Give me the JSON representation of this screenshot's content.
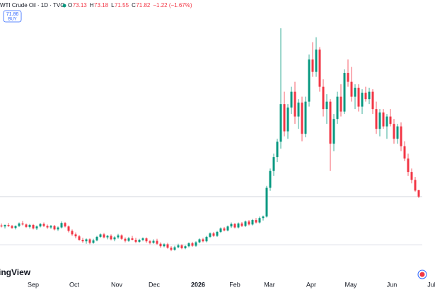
{
  "header": {
    "title": "WTI Crude Oil · 1D · TVC",
    "legend": [
      {
        "key": "O",
        "value": 73.13
      },
      {
        "key": "H",
        "value": 73.18
      },
      {
        "key": "L",
        "value": 71.55
      },
      {
        "key": "C",
        "value": 71.82
      }
    ],
    "change": "−1.22 (−1.67%)",
    "price_button": {
      "price": 71.86,
      "label": "BUY"
    }
  },
  "watermark": "ingView",
  "chart_data": {
    "type": "candlestick",
    "up_color": "#089981",
    "down_color": "#f23645",
    "xlim": [
      -0.4,
      122.6
    ],
    "ylim": [
      55.4,
      108.8
    ],
    "xticks": [
      {
        "value": 9,
        "label": "Sep"
      },
      {
        "value": 20.6,
        "label": "Oct"
      },
      {
        "value": 32.6,
        "label": "Nov"
      },
      {
        "value": 43.2,
        "label": "Dec"
      },
      {
        "value": 55.6,
        "label": "2026"
      },
      {
        "value": 66,
        "label": "Feb"
      },
      {
        "value": 75.8,
        "label": "Mar"
      },
      {
        "value": 87.6,
        "label": "Apr"
      },
      {
        "value": 98.8,
        "label": "May"
      },
      {
        "value": 110.4,
        "label": "Jun"
      },
      {
        "value": 121.6,
        "label": "Jul"
      }
    ],
    "ohlc": [
      [
        66.0,
        66.4,
        65.6,
        65.8
      ],
      [
        65.8,
        66.2,
        65.4,
        66.1
      ],
      [
        66.1,
        66.5,
        65.7,
        65.9
      ],
      [
        65.9,
        66.1,
        65.3,
        65.5
      ],
      [
        65.5,
        66.0,
        65.2,
        65.9
      ],
      [
        65.9,
        66.6,
        65.7,
        66.4
      ],
      [
        66.4,
        66.9,
        66.0,
        66.2
      ],
      [
        66.2,
        66.4,
        65.5,
        65.7
      ],
      [
        65.7,
        66.3,
        65.4,
        66.1
      ],
      [
        66.1,
        66.3,
        65.2,
        65.4
      ],
      [
        65.4,
        66.0,
        65.1,
        65.8
      ],
      [
        65.8,
        66.5,
        65.6,
        66.3
      ],
      [
        66.3,
        66.6,
        65.7,
        65.9
      ],
      [
        65.9,
        66.2,
        65.3,
        65.6
      ],
      [
        65.6,
        66.1,
        65.3,
        65.9
      ],
      [
        65.9,
        66.1,
        65.0,
        65.2
      ],
      [
        65.2,
        65.8,
        64.9,
        65.6
      ],
      [
        65.6,
        66.8,
        65.4,
        66.5
      ],
      [
        66.5,
        66.7,
        65.6,
        65.8
      ],
      [
        65.8,
        66.0,
        64.6,
        64.9
      ],
      [
        64.9,
        65.2,
        63.9,
        64.2
      ],
      [
        64.2,
        64.6,
        63.4,
        63.8
      ],
      [
        63.8,
        64.1,
        62.9,
        63.1
      ],
      [
        63.1,
        63.5,
        62.5,
        62.8
      ],
      [
        62.8,
        63.4,
        62.3,
        63.2
      ],
      [
        63.2,
        63.4,
        62.2,
        62.5
      ],
      [
        62.5,
        63.3,
        62.3,
        63.0
      ],
      [
        63.0,
        63.9,
        62.8,
        63.7
      ],
      [
        63.7,
        64.4,
        63.5,
        64.2
      ],
      [
        64.2,
        64.5,
        63.4,
        63.6
      ],
      [
        63.6,
        64.1,
        63.2,
        63.9
      ],
      [
        63.9,
        64.2,
        63.0,
        63.2
      ],
      [
        63.2,
        63.8,
        62.8,
        63.6
      ],
      [
        63.6,
        64.3,
        63.3,
        64.0
      ],
      [
        64.0,
        64.2,
        63.1,
        63.3
      ],
      [
        63.3,
        63.6,
        62.6,
        62.9
      ],
      [
        62.9,
        63.7,
        62.7,
        63.4
      ],
      [
        63.4,
        63.9,
        63.0,
        63.1
      ],
      [
        63.1,
        63.5,
        62.4,
        62.7
      ],
      [
        62.7,
        63.3,
        62.5,
        63.1
      ],
      [
        63.1,
        63.6,
        62.8,
        63.4
      ],
      [
        63.4,
        63.6,
        62.5,
        62.8
      ],
      [
        62.8,
        63.1,
        62.2,
        62.5
      ],
      [
        62.5,
        63.2,
        62.3,
        62.9
      ],
      [
        62.9,
        63.3,
        62.1,
        62.3
      ],
      [
        62.3,
        62.6,
        61.5,
        61.8
      ],
      [
        61.8,
        62.4,
        61.6,
        62.2
      ],
      [
        62.2,
        62.5,
        61.3,
        61.5
      ],
      [
        61.5,
        61.8,
        60.8,
        61.1
      ],
      [
        61.1,
        61.9,
        60.9,
        61.6
      ],
      [
        61.6,
        62.3,
        61.4,
        62.0
      ],
      [
        62.0,
        62.2,
        61.2,
        61.4
      ],
      [
        61.4,
        62.0,
        61.2,
        61.8
      ],
      [
        61.8,
        62.6,
        61.6,
        62.4
      ],
      [
        62.4,
        62.7,
        61.7,
        61.9
      ],
      [
        61.9,
        62.8,
        61.7,
        62.6
      ],
      [
        62.6,
        63.4,
        62.4,
        63.2
      ],
      [
        63.2,
        63.5,
        62.6,
        62.8
      ],
      [
        62.8,
        63.9,
        62.6,
        63.7
      ],
      [
        63.7,
        64.6,
        63.5,
        64.4
      ],
      [
        64.4,
        64.7,
        63.7,
        63.9
      ],
      [
        63.9,
        64.9,
        63.7,
        64.7
      ],
      [
        64.7,
        65.6,
        64.5,
        65.4
      ],
      [
        65.4,
        65.7,
        64.8,
        65.0
      ],
      [
        65.0,
        66.0,
        64.8,
        65.8
      ],
      [
        65.8,
        66.6,
        65.5,
        66.3
      ],
      [
        66.3,
        66.5,
        65.4,
        65.6
      ],
      [
        65.6,
        66.6,
        65.4,
        66.4
      ],
      [
        66.4,
        66.7,
        65.7,
        65.9
      ],
      [
        65.9,
        67.0,
        65.7,
        66.8
      ],
      [
        66.8,
        67.1,
        66.0,
        66.2
      ],
      [
        66.2,
        67.3,
        66.0,
        67.1
      ],
      [
        67.1,
        67.5,
        66.4,
        66.6
      ],
      [
        66.6,
        67.8,
        66.4,
        67.5
      ],
      [
        67.5,
        68.0,
        67.0,
        67.8
      ],
      [
        67.8,
        74.0,
        67.6,
        73.6
      ],
      [
        73.6,
        77.5,
        73.0,
        77.0
      ],
      [
        77.0,
        80.5,
        76.0,
        79.8
      ],
      [
        79.8,
        83.5,
        78.8,
        82.9
      ],
      [
        82.9,
        105.8,
        81.5,
        90.5
      ],
      [
        90.5,
        93.0,
        84.0,
        85.0
      ],
      [
        85.0,
        90.5,
        83.5,
        89.8
      ],
      [
        89.8,
        94.0,
        88.5,
        93.0
      ],
      [
        93.0,
        95.0,
        86.5,
        88.0
      ],
      [
        88.0,
        91.5,
        85.5,
        90.8
      ],
      [
        90.8,
        92.0,
        83.0,
        84.5
      ],
      [
        84.5,
        92.0,
        83.8,
        91.0
      ],
      [
        91.0,
        100.5,
        90.0,
        99.5
      ],
      [
        99.5,
        103.0,
        96.0,
        97.0
      ],
      [
        97.0,
        104.0,
        96.0,
        101.5
      ],
      [
        101.5,
        102.0,
        93.0,
        94.0
      ],
      [
        94.0,
        95.5,
        88.0,
        89.5
      ],
      [
        89.5,
        92.5,
        86.5,
        91.0
      ],
      [
        91.0,
        91.5,
        77.0,
        82.5
      ],
      [
        82.5,
        88.5,
        81.0,
        87.5
      ],
      [
        87.5,
        93.0,
        86.5,
        92.0
      ],
      [
        92.0,
        94.5,
        88.0,
        89.0
      ],
      [
        89.0,
        97.5,
        88.5,
        96.8
      ],
      [
        96.8,
        99.5,
        94.0,
        95.0
      ],
      [
        95.0,
        98.0,
        91.0,
        92.0
      ],
      [
        92.0,
        94.5,
        89.5,
        93.8
      ],
      [
        93.8,
        94.5,
        89.0,
        90.0
      ],
      [
        90.0,
        93.5,
        88.5,
        92.8
      ],
      [
        92.8,
        94.0,
        91.0,
        91.5
      ],
      [
        91.5,
        93.8,
        90.5,
        93.0
      ],
      [
        93.0,
        93.5,
        88.5,
        89.5
      ],
      [
        89.5,
        91.0,
        84.5,
        85.5
      ],
      [
        85.5,
        89.5,
        84.0,
        88.8
      ],
      [
        88.8,
        89.5,
        85.5,
        86.0
      ],
      [
        86.0,
        88.5,
        83.5,
        88.0
      ],
      [
        88.0,
        89.5,
        86.0,
        86.5
      ],
      [
        86.5,
        87.5,
        82.5,
        83.5
      ],
      [
        83.5,
        86.5,
        82.5,
        86.0
      ],
      [
        86.0,
        86.8,
        81.0,
        82.0
      ],
      [
        82.0,
        83.0,
        79.0,
        79.5
      ],
      [
        79.5,
        80.5,
        76.0,
        76.8
      ],
      [
        76.8,
        77.5,
        74.5,
        75.2
      ],
      [
        75.2,
        75.8,
        72.8,
        73.04
      ],
      [
        73.13,
        73.18,
        71.55,
        71.82
      ]
    ]
  }
}
